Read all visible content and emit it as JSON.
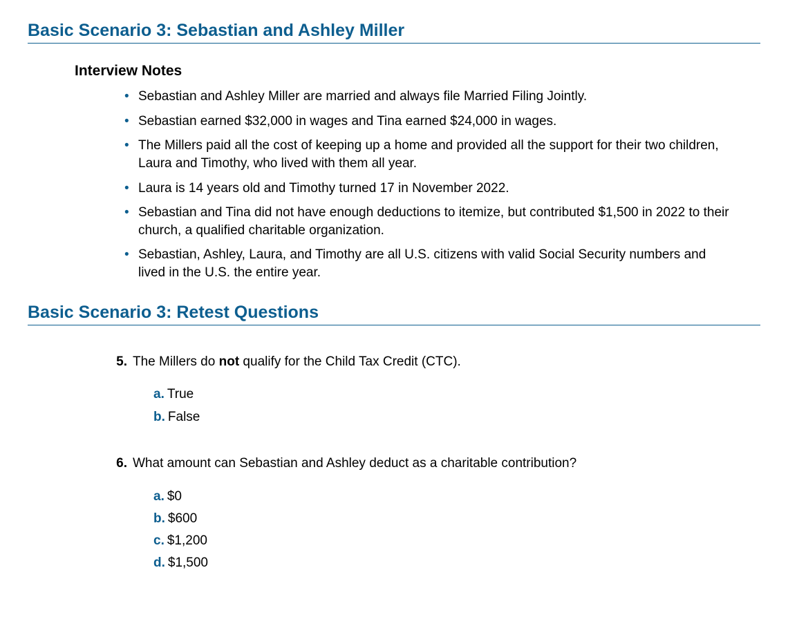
{
  "heading_color": "#0d5e8f",
  "text_color": "#000000",
  "background_color": "#ffffff",
  "bullet_color": "#0d5e8f",
  "answer_letter_color": "#0d5e8f",
  "section1": {
    "title": "Basic Scenario 3: Sebastian and Ashley Miller",
    "sub_title": "Interview Notes",
    "notes": [
      "Sebastian and Ashley Miller are married and always file Married Filing Jointly.",
      "Sebastian earned $32,000 in wages and Tina earned $24,000 in wages.",
      "The Millers paid all the cost of keeping up a home and provided all the support for their two children, Laura and Timothy, who lived with them all year.",
      "Laura is 14 years old and Timothy turned 17 in November 2022.",
      "Sebastian and Tina did not have enough deductions to itemize, but contributed $1,500 in 2022 to their church, a qualified charitable organization.",
      "Sebastian, Ashley, Laura, and Timothy are all U.S. citizens with valid Social Security numbers and lived in the U.S. the entire year."
    ]
  },
  "section2": {
    "title": "Basic Scenario 3: Retest Questions",
    "questions": [
      {
        "number": "5.",
        "text_before": "The Millers do ",
        "bold": "not",
        "text_after": " qualify for the Child Tax Credit (CTC).",
        "answers": [
          {
            "letter": "a.",
            "text": "True"
          },
          {
            "letter": "b.",
            "text": "False"
          }
        ]
      },
      {
        "number": "6.",
        "text_before": "What amount can Sebastian and Ashley deduct as a charitable contribution?",
        "bold": "",
        "text_after": "",
        "answers": [
          {
            "letter": "a.",
            "text": "$0"
          },
          {
            "letter": "b.",
            "text": "$600"
          },
          {
            "letter": "c.",
            "text": "$1,200"
          },
          {
            "letter": "d.",
            "text": "$1,500"
          }
        ]
      }
    ]
  }
}
